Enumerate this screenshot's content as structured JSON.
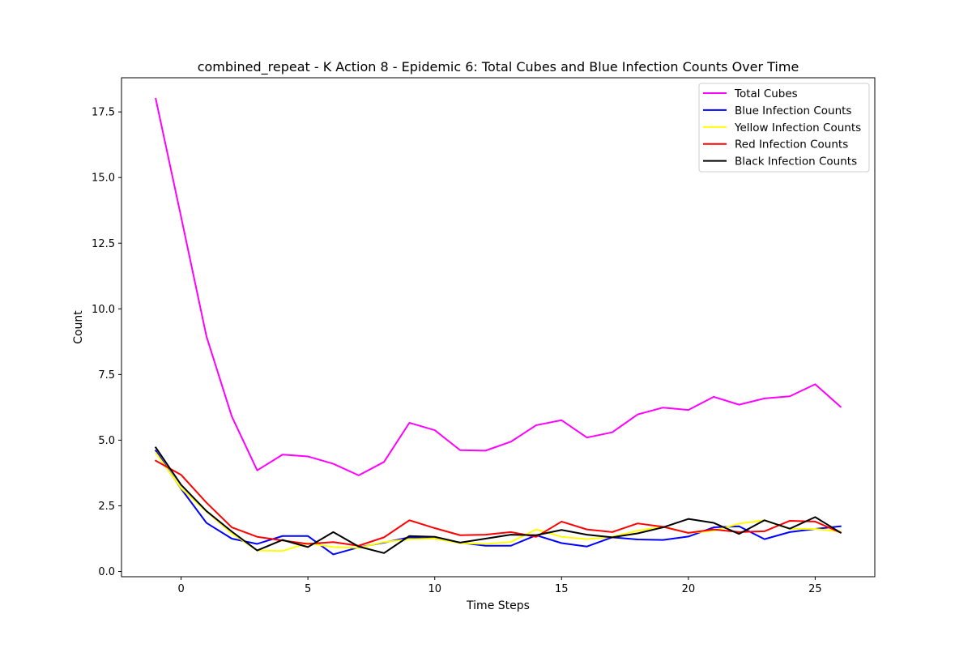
{
  "chart_data": {
    "type": "line",
    "title": "combined_repeat - K Action 8 - Epidemic 6: Total Cubes and Blue Infection Counts Over Time",
    "xlabel": "Time Steps",
    "ylabel": "Count",
    "xlim": [
      -2.35,
      27.35
    ],
    "ylim": [
      -0.2,
      18.8
    ],
    "xticks": [
      0,
      5,
      10,
      15,
      20,
      25
    ],
    "yticks": [
      0.0,
      2.5,
      5.0,
      7.5,
      10.0,
      12.5,
      15.0,
      17.5
    ],
    "ytick_labels": [
      "0.0",
      "2.5",
      "5.0",
      "7.5",
      "10.0",
      "12.5",
      "15.0",
      "17.5"
    ],
    "grid": false,
    "legend_position": "top-right",
    "x": [
      -1,
      0,
      1,
      2,
      3,
      4,
      5,
      6,
      7,
      8,
      9,
      10,
      11,
      12,
      13,
      14,
      15,
      16,
      17,
      18,
      19,
      20,
      21,
      22,
      23,
      24,
      25,
      26
    ],
    "series": [
      {
        "name": "Total Cubes",
        "color": "#ff00ff",
        "values": [
          18.0,
          13.5,
          8.95,
          5.9,
          3.85,
          4.45,
          4.38,
          4.1,
          3.66,
          4.17,
          5.66,
          5.38,
          4.62,
          4.6,
          4.94,
          5.57,
          5.76,
          5.1,
          5.3,
          5.98,
          6.24,
          6.15,
          6.65,
          6.35,
          6.59,
          6.67,
          7.13,
          6.27
        ]
      },
      {
        "name": "Blue Infection Counts",
        "color": "#0000ff",
        "values": [
          4.6,
          3.15,
          1.85,
          1.25,
          1.05,
          1.35,
          1.35,
          0.65,
          0.92,
          1.1,
          1.3,
          1.25,
          1.1,
          0.98,
          0.98,
          1.38,
          1.08,
          0.95,
          1.3,
          1.22,
          1.2,
          1.33,
          1.68,
          1.72,
          1.23,
          1.5,
          1.62,
          1.72
        ]
      },
      {
        "name": "Yellow Infection Counts",
        "color": "#ffff00",
        "values": [
          4.52,
          3.17,
          2.28,
          1.45,
          0.8,
          0.78,
          1.08,
          0.93,
          0.9,
          1.12,
          1.23,
          1.25,
          1.08,
          1.05,
          1.12,
          1.6,
          1.32,
          1.23,
          1.32,
          1.55,
          1.7,
          1.47,
          1.55,
          1.82,
          1.95,
          1.62,
          1.62,
          1.52
        ]
      },
      {
        "name": "Red Infection Counts",
        "color": "#ff0000",
        "values": [
          4.22,
          3.68,
          2.62,
          1.68,
          1.32,
          1.18,
          1.05,
          1.12,
          0.98,
          1.3,
          1.95,
          1.65,
          1.38,
          1.4,
          1.5,
          1.32,
          1.9,
          1.6,
          1.5,
          1.83,
          1.7,
          1.47,
          1.6,
          1.5,
          1.53,
          1.93,
          1.9,
          1.48
        ]
      },
      {
        "name": "Black Infection Counts",
        "color": "#000000",
        "values": [
          4.72,
          3.3,
          2.3,
          1.52,
          0.8,
          1.2,
          0.93,
          1.5,
          0.95,
          0.7,
          1.35,
          1.32,
          1.1,
          1.25,
          1.4,
          1.38,
          1.58,
          1.4,
          1.3,
          1.45,
          1.68,
          2.0,
          1.85,
          1.43,
          1.95,
          1.63,
          2.07,
          1.48
        ]
      }
    ]
  }
}
